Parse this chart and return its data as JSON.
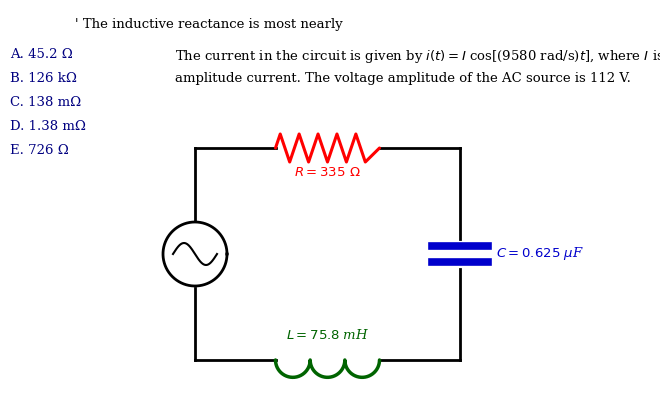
{
  "bg_color": "#ffffff",
  "title_text": "' The inductive reactance is most nearly",
  "choices": [
    "A. 45.2 Ω",
    "B. 126 kΩ",
    "C. 138 mΩ",
    "D. 1.38 mΩ",
    "E. 726 Ω"
  ],
  "problem_text_line1": "The current in the circuit is given by $i(t) = I$ cos[(9580 rad/s)$t$], where $I$ is the",
  "problem_text_line2": "amplitude current. The voltage amplitude of the AC source is 112 V.",
  "R_label": "$R = 335\\ \\Omega$",
  "C_label": "$C = 0.625\\ \\mu$F",
  "L_label": "$L = 75.8$ mH",
  "resistor_color": "#ff0000",
  "capacitor_color": "#0000cc",
  "inductor_color": "#006400",
  "circuit_color": "#000000",
  "text_color": "#000000",
  "choice_color": "#000080",
  "font_size": 9.5,
  "title_font_size": 9.5,
  "label_font_size": 9.5,
  "circuit_lw": 2.0,
  "res_lw": 2.2,
  "cap_lw": 5.5,
  "ind_lw": 2.5
}
